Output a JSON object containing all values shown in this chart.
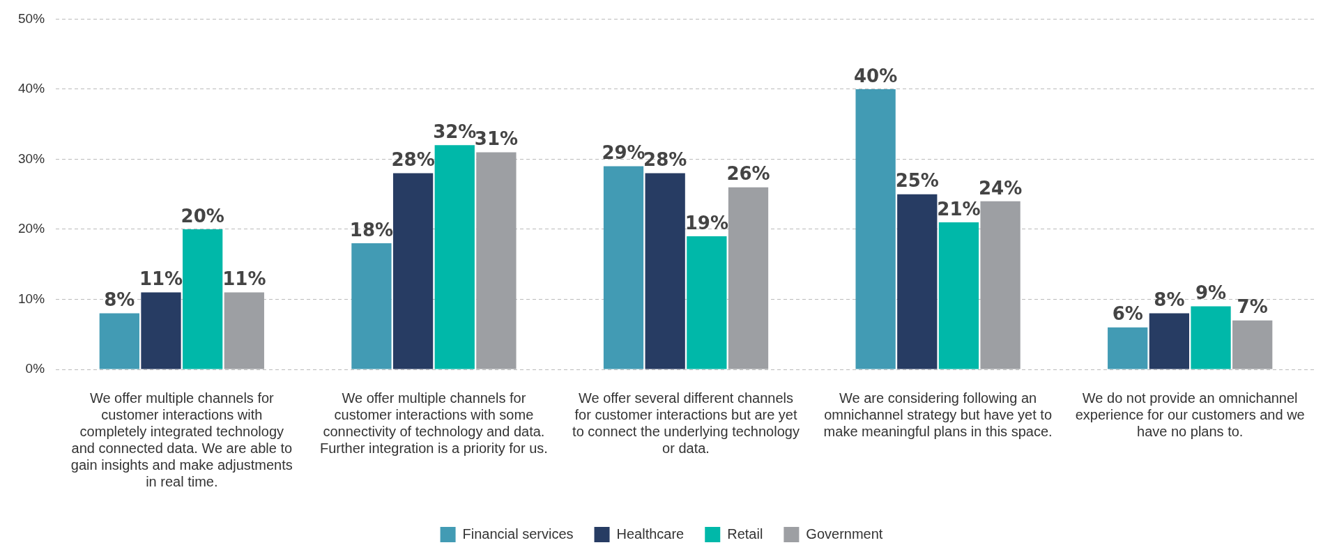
{
  "chart_data": {
    "type": "bar",
    "categories": [
      "We offer multiple channels for customer interactions with completely integrated technology and connected data. We are able to gain insights and make adjustments in real time.",
      "We offer multiple channels for customer interactions with some connectivity of technology and data. Further integration is a priority for us.",
      "We offer several different channels for customer interactions but are yet to connect the underlying technology or data.",
      "We are considering following an omnichannel strategy but have yet to make meaningful plans in this space.",
      "We do not provide an omnichannel experience for our customers and we have no plans to."
    ],
    "series": [
      {
        "name": "Financial services",
        "color": "#429bb4",
        "values": [
          8,
          18,
          29,
          40,
          6
        ],
        "value_labels": [
          "8%",
          "18%",
          "29%",
          "40%",
          "6%"
        ]
      },
      {
        "name": "Healthcare",
        "color": "#273c63",
        "values": [
          11,
          28,
          28,
          25,
          8
        ],
        "value_labels": [
          "11%",
          "28%",
          "28%",
          "25%",
          "8%"
        ]
      },
      {
        "name": "Retail",
        "color": "#00b8a9",
        "values": [
          20,
          32,
          19,
          21,
          9
        ],
        "value_labels": [
          "20%",
          "32%",
          "19%",
          "21%",
          "9%"
        ]
      },
      {
        "name": "Government",
        "color": "#9d9fa3",
        "values": [
          11,
          31,
          26,
          24,
          7
        ],
        "value_labels": [
          "11%",
          "31%",
          "26%",
          "24%",
          "7%"
        ]
      }
    ],
    "ylim": [
      0,
      50
    ],
    "yticks": [
      {
        "value": 0,
        "label": "0%"
      },
      {
        "value": 10,
        "label": "10%"
      },
      {
        "value": 20,
        "label": "20%"
      },
      {
        "value": 30,
        "label": "30%"
      },
      {
        "value": 40,
        "label": "40%"
      },
      {
        "value": 50,
        "label": "50%"
      }
    ],
    "grid": "y",
    "legend": "bottom"
  }
}
